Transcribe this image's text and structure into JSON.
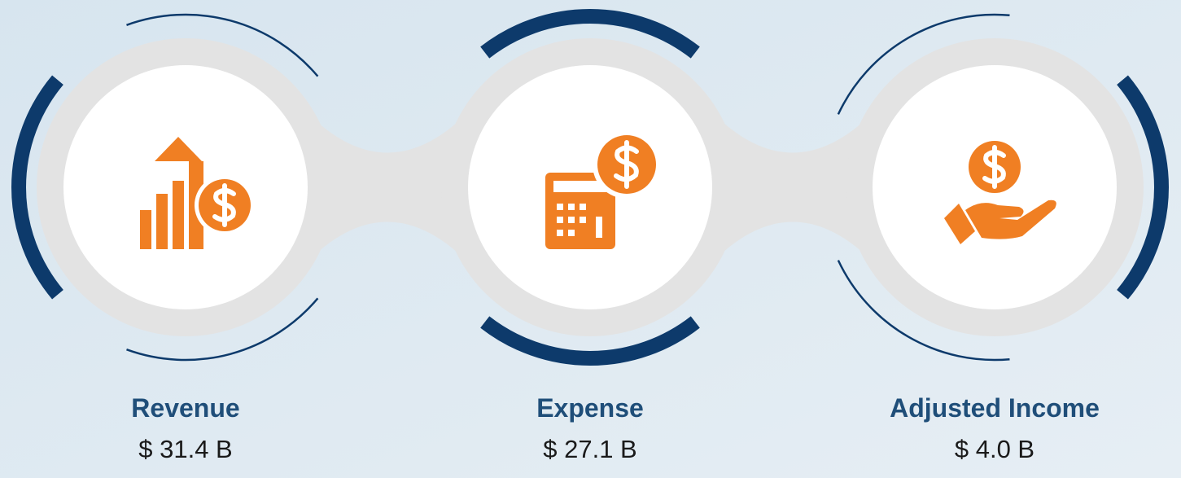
{
  "items": [
    {
      "label": "Revenue",
      "value": "$ 31.4 B"
    },
    {
      "label": "Expense",
      "value": "$ 27.1 B"
    },
    {
      "label": "Adjusted Income",
      "value": "$ 4.0 B"
    }
  ]
}
